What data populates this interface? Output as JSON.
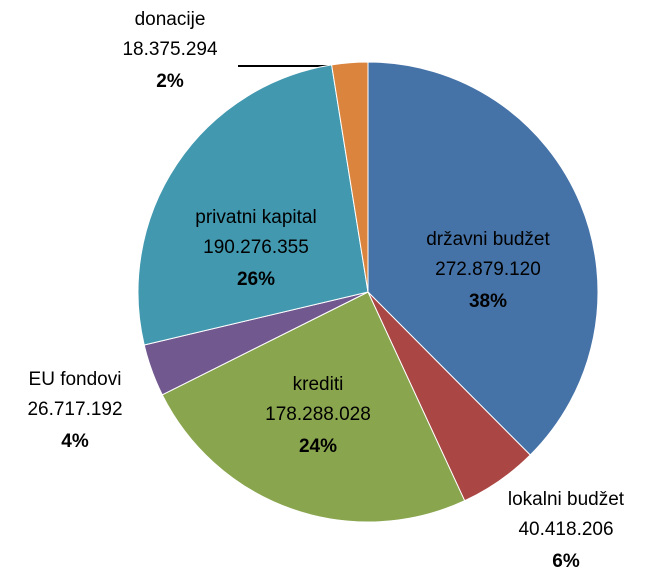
{
  "chart_data": {
    "type": "pie",
    "categories": [
      "državni budžet",
      "lokalni budžet",
      "krediti",
      "EU fondovi",
      "privatni kapital",
      "donacije"
    ],
    "values": [
      272879120,
      40418206,
      178288028,
      26717192,
      190276355,
      18375294
    ],
    "value_labels": [
      "272.879.120",
      "40.418.206",
      "178.288.028",
      "26.717.192",
      "190.276.355",
      "18.375.294"
    ],
    "percent_labels": [
      "38%",
      "6%",
      "24%",
      "4%",
      "26%",
      "2%"
    ],
    "colors": [
      "#4572a7",
      "#aa4643",
      "#89a54e",
      "#71588f",
      "#4198af",
      "#db843d"
    ]
  }
}
